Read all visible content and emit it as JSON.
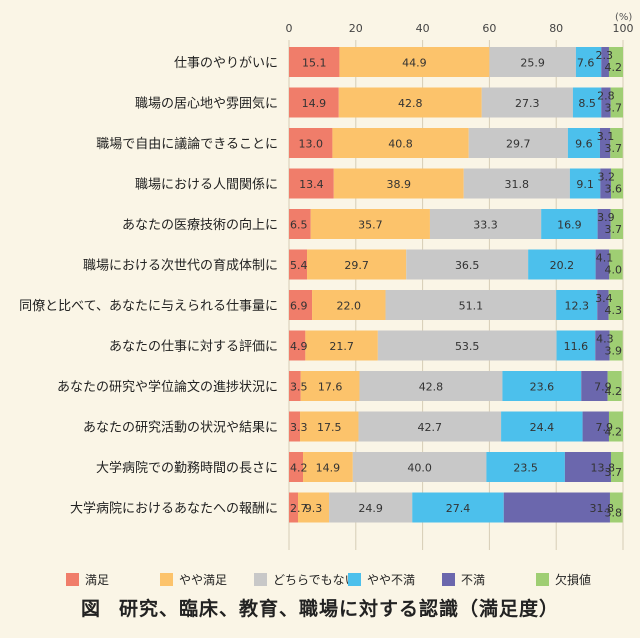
{
  "chart_data": {
    "type": "bar",
    "orientation": "horizontal",
    "stacked": true,
    "title": "研究、臨床、教育、職場に対する認識（満足度）",
    "figure_label": "図",
    "unit_label": "(%)",
    "xlim": [
      0,
      100
    ],
    "x_ticks": [
      "0",
      "20",
      "40",
      "60",
      "80",
      "100"
    ],
    "categories": [
      "仕事のやりがいに",
      "職場の居心地や雰囲気に",
      "職場で自由に議論できることに",
      "職場における人間関係に",
      "あなたの医療技術の向上に",
      "職場における次世代の育成体制に",
      "同僚と比べて、あなたに与えられる仕事量に",
      "あなたの仕事に対する評価に",
      "あなたの研究や学位論文の進捗状況に",
      "あなたの研究活動の状況や結果に",
      "大学病院での勤務時間の長さに",
      "大学病院におけるあなたへの報酬に"
    ],
    "series": [
      {
        "name": "満足",
        "color": "#f07d6a",
        "values": [
          15.1,
          14.9,
          13.0,
          13.4,
          6.5,
          5.4,
          6.9,
          4.9,
          3.5,
          3.3,
          4.2,
          2.7
        ]
      },
      {
        "name": "やや満足",
        "color": "#fcc36b",
        "values": [
          44.9,
          42.8,
          40.8,
          38.9,
          35.7,
          29.7,
          22.0,
          21.7,
          17.6,
          17.5,
          14.9,
          9.3
        ]
      },
      {
        "name": "どちらでもない",
        "color": "#c8c8c8",
        "values": [
          25.9,
          27.3,
          29.7,
          31.8,
          33.3,
          36.5,
          51.1,
          53.5,
          42.8,
          42.7,
          40.0,
          24.9
        ]
      },
      {
        "name": "やや不満",
        "color": "#4cc0ec",
        "values": [
          7.6,
          8.5,
          9.6,
          9.1,
          16.9,
          20.2,
          12.3,
          11.6,
          23.6,
          24.4,
          23.5,
          27.4
        ]
      },
      {
        "name": "不満",
        "color": "#6b67ad",
        "values": [
          2.3,
          2.8,
          3.1,
          3.2,
          3.9,
          4.1,
          3.4,
          4.3,
          7.9,
          7.9,
          13.8,
          31.8
        ]
      },
      {
        "name": "欠損値",
        "color": "#9fce73",
        "values": [
          4.2,
          3.7,
          3.7,
          3.6,
          3.7,
          4.0,
          4.3,
          3.9,
          4.2,
          4.2,
          3.7,
          3.8
        ]
      }
    ]
  }
}
